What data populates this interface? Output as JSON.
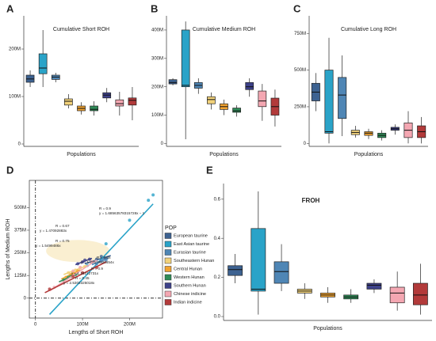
{
  "chart_data": [
    {
      "type": "box",
      "panel_label": "A",
      "title": "Cumulative Short ROH",
      "xlabel": "Populations",
      "ylim": [
        -5000000.0,
        270000000.0
      ],
      "yticks": [
        0,
        {
          "value": 100000000.0,
          "label": "100M"
        },
        {
          "value": 200000000.0,
          "label": "200M"
        }
      ],
      "boxes": [
        {
          "color": "#3d6291",
          "low": 120000000.0,
          "q1": 130000000.0,
          "median": 137000000.0,
          "q3": 145000000.0,
          "high": 155000000.0
        },
        {
          "color": "#2aa3c8",
          "low": 120000000.0,
          "q1": 148000000.0,
          "median": 160000000.0,
          "q3": 190000000.0,
          "high": 240000000.0
        },
        {
          "color": "#4f86b5",
          "low": 130000000.0,
          "q1": 136000000.0,
          "median": 141000000.0,
          "q3": 145000000.0,
          "high": 150000000.0
        },
        {
          "color": "#f2d27a",
          "low": 75000000.0,
          "q1": 82000000.0,
          "median": 90000000.0,
          "q3": 95000000.0,
          "high": 105000000.0
        },
        {
          "color": "#f0a230",
          "low": 62000000.0,
          "q1": 70000000.0,
          "median": 75000000.0,
          "q3": 80000000.0,
          "high": 88000000.0
        },
        {
          "color": "#2e8b57",
          "low": 60000000.0,
          "q1": 70000000.0,
          "median": 73000000.0,
          "q3": 80000000.0,
          "high": 90000000.0
        },
        {
          "color": "#3d4189",
          "low": 88000000.0,
          "q1": 97000000.0,
          "median": 103000000.0,
          "q3": 108000000.0,
          "high": 118000000.0
        },
        {
          "color": "#f4a7b2",
          "low": 60000000.0,
          "q1": 80000000.0,
          "median": 85000000.0,
          "q3": 93000000.0,
          "high": 110000000.0
        },
        {
          "color": "#b23a3a",
          "low": 50000000.0,
          "q1": 82000000.0,
          "median": 92000000.0,
          "q3": 97000000.0,
          "high": 120000000.0
        }
      ]
    },
    {
      "type": "box",
      "panel_label": "B",
      "title": "Cumulative Medium ROH",
      "xlabel": "Populations",
      "ylim": [
        -10000000.0,
        450000000.0
      ],
      "yticks": [
        0,
        {
          "value": 100000000.0,
          "label": "100M"
        },
        {
          "value": 200000000.0,
          "label": "200M"
        },
        {
          "value": 300000000.0,
          "label": "300M"
        },
        {
          "value": 400000000.0,
          "label": "400M"
        }
      ],
      "boxes": [
        {
          "color": "#3d6291",
          "low": 205000000.0,
          "q1": 210000000.0,
          "median": 215000000.0,
          "q3": 225000000.0,
          "high": 230000000.0
        },
        {
          "color": "#2aa3c8",
          "low": 15000000.0,
          "q1": 200000000.0,
          "median": 205000000.0,
          "q3": 400000000.0,
          "high": 430000000.0
        },
        {
          "color": "#4f86b5",
          "low": 175000000.0,
          "q1": 195000000.0,
          "median": 205000000.0,
          "q3": 215000000.0,
          "high": 230000000.0
        },
        {
          "color": "#f2d27a",
          "low": 120000000.0,
          "q1": 140000000.0,
          "median": 155000000.0,
          "q3": 165000000.0,
          "high": 180000000.0
        },
        {
          "color": "#f0a230",
          "low": 100000000.0,
          "q1": 120000000.0,
          "median": 130000000.0,
          "q3": 140000000.0,
          "high": 155000000.0
        },
        {
          "color": "#2e8b57",
          "low": 95000000.0,
          "q1": 110000000.0,
          "median": 115000000.0,
          "q3": 125000000.0,
          "high": 135000000.0
        },
        {
          "color": "#3d4189",
          "low": 165000000.0,
          "q1": 190000000.0,
          "median": 200000000.0,
          "q3": 215000000.0,
          "high": 230000000.0
        },
        {
          "color": "#f4a7b2",
          "low": 80000000.0,
          "q1": 130000000.0,
          "median": 150000000.0,
          "q3": 185000000.0,
          "high": 210000000.0
        },
        {
          "color": "#b23a3a",
          "low": 60000000.0,
          "q1": 100000000.0,
          "median": 130000000.0,
          "q3": 160000000.0,
          "high": 190000000.0
        }
      ]
    },
    {
      "type": "box",
      "panel_label": "C",
      "title": "Cumulative Long ROH",
      "xlabel": "Populations",
      "ylim": [
        -20000000.0,
        870000000.0
      ],
      "yticks": [
        0,
        {
          "value": 250000000.0,
          "label": "250M"
        },
        {
          "value": 500000000.0,
          "label": "500M"
        },
        {
          "value": 750000000.0,
          "label": "750M"
        }
      ],
      "boxes": [
        {
          "color": "#3d6291",
          "low": 220000000.0,
          "q1": 290000000.0,
          "median": 350000000.0,
          "q3": 410000000.0,
          "high": 480000000.0
        },
        {
          "color": "#2aa3c8",
          "low": 0,
          "q1": 70000000.0,
          "median": 80000000.0,
          "q3": 500000000.0,
          "high": 720000000.0
        },
        {
          "color": "#4f86b5",
          "low": 50000000.0,
          "q1": 170000000.0,
          "median": 330000000.0,
          "q3": 450000000.0,
          "high": 600000000.0
        },
        {
          "color": "#f2d27a",
          "low": 40000000.0,
          "q1": 60000000.0,
          "median": 75000000.0,
          "q3": 90000000.0,
          "high": 120000000.0
        },
        {
          "color": "#f0a230",
          "low": 30000000.0,
          "q1": 55000000.0,
          "median": 70000000.0,
          "q3": 80000000.0,
          "high": 100000000.0
        },
        {
          "color": "#2e8b57",
          "low": 20000000.0,
          "q1": 40000000.0,
          "median": 55000000.0,
          "q3": 70000000.0,
          "high": 90000000.0
        },
        {
          "color": "#3d4189",
          "low": 60000000.0,
          "q1": 90000000.0,
          "median": 100000000.0,
          "q3": 110000000.0,
          "high": 130000000.0
        },
        {
          "color": "#f4a7b2",
          "low": 0,
          "q1": 40000000.0,
          "median": 90000000.0,
          "q3": 140000000.0,
          "high": 220000000.0
        },
        {
          "color": "#b23a3a",
          "low": 0,
          "q1": 40000000.0,
          "median": 80000000.0,
          "q3": 120000000.0,
          "high": 180000000.0
        }
      ]
    },
    {
      "type": "scatter",
      "panel_label": "D",
      "xlabel": "Lengths of Short ROH",
      "ylabel": "Lengths of Medium ROH",
      "xlim": [
        -13000000.0,
        270000000.0
      ],
      "ylim": [
        -110000000.0,
        650000000.0
      ],
      "xticks": [
        0,
        {
          "value": 100000000.0,
          "label": "100M"
        },
        {
          "value": 200000000.0,
          "label": "200M"
        }
      ],
      "yticks": [
        0,
        {
          "value": 125000000.0,
          "label": "125M"
        },
        {
          "value": 250000000.0,
          "label": "250M"
        },
        {
          "value": 375000000.0,
          "label": "375M"
        },
        {
          "value": 500000000.0,
          "label": "500M"
        }
      ],
      "legend_title": "POP",
      "series": [
        {
          "name": "European taurine",
          "color": "#3d6291",
          "x": [
            120000000.0,
            130000000.0,
            140000000.0,
            150000000.0
          ],
          "y": [
            200000000.0,
            215000000.0,
            230000000.0,
            220000000.0
          ],
          "fit_x": [
            105000000.0,
            160000000.0
          ],
          "fit_y": [
            190000000.0,
            235000000.0
          ]
        },
        {
          "name": "East Asian taurine",
          "color": "#2aa3c8",
          "x": [
            110000000.0,
            150000000.0,
            200000000.0,
            240000000.0,
            250000000.0
          ],
          "y": [
            180000000.0,
            300000000.0,
            430000000.0,
            540000000.0,
            570000000.0
          ],
          "fit_x": [
            30000000.0,
            250000000.0
          ],
          "fit_y": [
            -90000000.0,
            520000000.0
          ]
        },
        {
          "name": "Eurasian taurine",
          "color": "#4f86b5",
          "x": [
            130000000.0,
            140000000.0,
            145000000.0,
            150000000.0
          ],
          "y": [
            190000000.0,
            205000000.0,
            215000000.0,
            210000000.0
          ],
          "fit_x": [
            120000000.0,
            155000000.0
          ],
          "fit_y": [
            185000000.0,
            220000000.0
          ]
        },
        {
          "name": "Southeastern Hunan",
          "color": "#f2d27a",
          "x": [
            70000000.0,
            85000000.0,
            95000000.0,
            105000000.0
          ],
          "y": [
            140000000.0,
            155000000.0,
            165000000.0,
            175000000.0
          ],
          "fit_x": [
            60000000.0,
            110000000.0
          ],
          "fit_y": [
            130000000.0,
            180000000.0
          ]
        },
        {
          "name": "Central Hunan",
          "color": "#f0a230",
          "x": [
            65000000.0,
            75000000.0,
            80000000.0,
            90000000.0
          ],
          "y": [
            115000000.0,
            130000000.0,
            140000000.0,
            150000000.0
          ],
          "fit_x": [
            55000000.0,
            95000000.0
          ],
          "fit_y": [
            105000000.0,
            155000000.0
          ]
        },
        {
          "name": "Western Hunan",
          "color": "#2e8b57",
          "x": [
            60000000.0,
            70000000.0,
            75000000.0,
            85000000.0
          ],
          "y": [
            100000000.0,
            115000000.0,
            120000000.0,
            130000000.0
          ],
          "fit_x": [
            50000000.0,
            90000000.0
          ],
          "fit_y": [
            90000000.0,
            135000000.0
          ]
        },
        {
          "name": "Southern Hunan",
          "color": "#3d4189",
          "x": [
            90000000.0,
            100000000.0,
            105000000.0,
            115000000.0
          ],
          "y": [
            190000000.0,
            200000000.0,
            210000000.0,
            215000000.0
          ],
          "fit_x": [
            85000000.0,
            120000000.0
          ],
          "fit_y": [
            185000000.0,
            220000000.0
          ]
        },
        {
          "name": "Chinese indicine",
          "color": "#f4a7b2",
          "x": [
            40000000.0,
            80000000.0,
            95000000.0,
            120000000.0
          ],
          "y": [
            60000000.0,
            150000000.0,
            170000000.0,
            200000000.0
          ],
          "fit_x": [
            30000000.0,
            130000000.0
          ],
          "fit_y": [
            40000000.0,
            210000000.0
          ]
        },
        {
          "name": "Indian indicine",
          "color": "#b23a3a",
          "x": [
            30000000.0,
            80000000.0,
            100000000.0,
            130000000.0
          ],
          "y": [
            50000000.0,
            120000000.0,
            140000000.0,
            170000000.0
          ],
          "fit_x": [
            20000000.0,
            150000000.0
          ],
          "fit_y": [
            30000000.0,
            200000000.0
          ]
        }
      ],
      "annotations": [
        {
          "text": "R = 0.9",
          "color": "#2aa3c8"
        },
        {
          "text": "y = 1.68563578315728x − 1",
          "color": "#2aa3c8"
        },
        {
          "text": "R = 0.67",
          "color": "#f2d27a"
        },
        {
          "text": "y = 1.47092883x",
          "color": "#f2d27a"
        },
        {
          "text": "R = 0.75",
          "color": "#2e8b57"
        },
        {
          "text": "y = 1.5499486x",
          "color": "#2e8b57"
        },
        {
          "text": "R = 0.86",
          "color": "#b23a3a"
        },
        {
          "text": "y = 1.77579831654x",
          "color": "#b23a3a"
        },
        {
          "text": "R = 0.9",
          "color": "#3d6291"
        },
        {
          "text": "y = 1.16212731x",
          "color": "#3d6291"
        },
        {
          "text": "R = 0.45",
          "color": "#2aa3c8"
        },
        {
          "text": "y = 2.5303325018x",
          "color": "#2aa3c8"
        }
      ]
    },
    {
      "type": "box",
      "panel_label": "E",
      "title": "FROH",
      "xlabel": "Populations",
      "ylim": [
        -0.02,
        0.68
      ],
      "yticks": [
        {
          "value": 0,
          "label": "0.0"
        },
        0.2,
        0.4,
        0.6
      ],
      "boxes": [
        {
          "color": "#3d6291",
          "low": 0.17,
          "q1": 0.21,
          "median": 0.24,
          "q3": 0.26,
          "high": 0.32
        },
        {
          "color": "#2aa3c8",
          "low": 0.01,
          "q1": 0.13,
          "median": 0.14,
          "q3": 0.45,
          "high": 0.64
        },
        {
          "color": "#4f86b5",
          "low": 0.13,
          "q1": 0.17,
          "median": 0.23,
          "q3": 0.28,
          "high": 0.37
        },
        {
          "color": "#f2d27a",
          "low": 0.09,
          "q1": 0.12,
          "median": 0.13,
          "q3": 0.14,
          "high": 0.17
        },
        {
          "color": "#f0a230",
          "low": 0.07,
          "q1": 0.1,
          "median": 0.11,
          "q3": 0.12,
          "high": 0.15
        },
        {
          "color": "#2e8b57",
          "low": 0.07,
          "q1": 0.09,
          "median": 0.1,
          "q3": 0.11,
          "high": 0.14
        },
        {
          "color": "#3d4189",
          "low": 0.12,
          "q1": 0.14,
          "median": 0.16,
          "q3": 0.17,
          "high": 0.19
        },
        {
          "color": "#f4a7b2",
          "low": 0.03,
          "q1": 0.07,
          "median": 0.12,
          "q3": 0.15,
          "high": 0.23
        },
        {
          "color": "#b23a3a",
          "low": 0.01,
          "q1": 0.06,
          "median": 0.11,
          "q3": 0.17,
          "high": 0.27
        }
      ]
    }
  ]
}
